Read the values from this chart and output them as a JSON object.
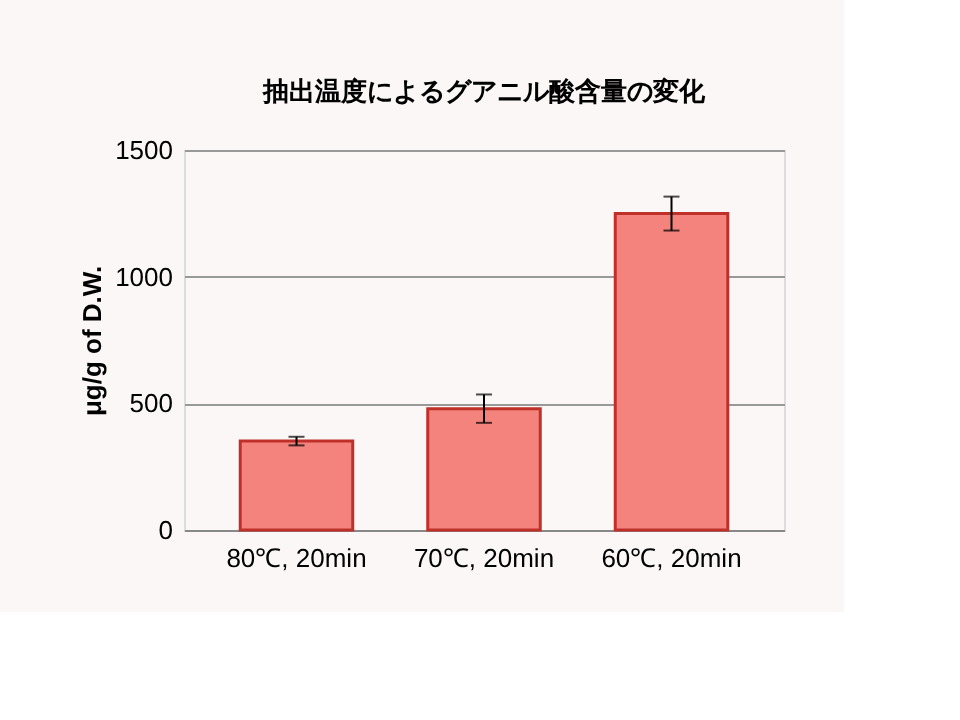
{
  "chart_data": {
    "type": "bar",
    "title": "抽出温度によるグアニル酸含量の変化",
    "ylabel": "μg/g of D.W.",
    "categories": [
      "80℃, 20min",
      "70℃, 20min",
      "60℃, 20min"
    ],
    "values": [
      351,
      479,
      1249
    ],
    "errors": [
      17,
      56,
      67
    ],
    "color": "#f4837d",
    "ylim": [
      0,
      1500
    ],
    "yticks": [
      0,
      500,
      1000,
      1500
    ],
    "grid": "y"
  }
}
